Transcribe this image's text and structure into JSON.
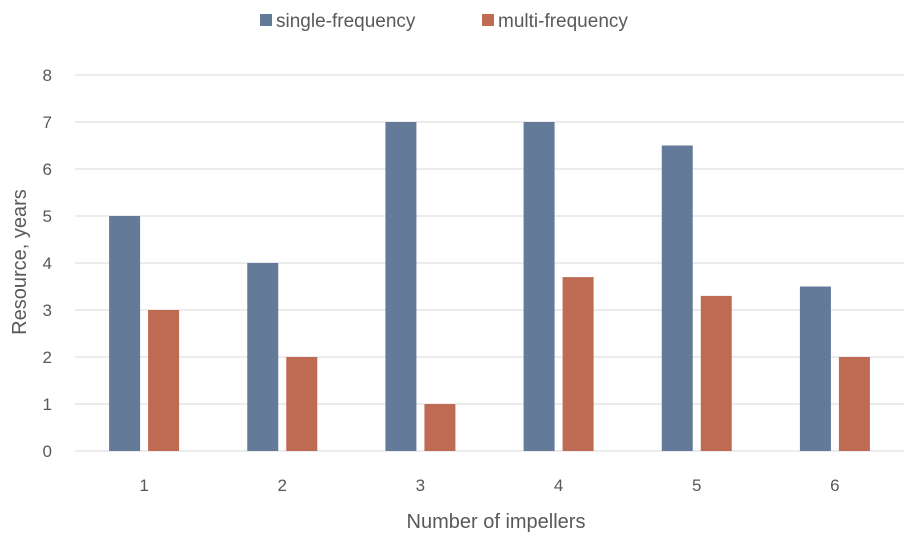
{
  "chart_data": {
    "type": "bar",
    "title": "",
    "xlabel": "Number  of impellers",
    "ylabel": "Resource, years",
    "categories": [
      "1",
      "2",
      "3",
      "4",
      "5",
      "6"
    ],
    "series": [
      {
        "name": "single-frequency",
        "color": "#647a99",
        "values": [
          5.0,
          4.0,
          7.0,
          7.0,
          6.5,
          3.5
        ]
      },
      {
        "name": "multi-frequency",
        "color": "#bf6a52",
        "values": [
          3.0,
          2.0,
          1.0,
          3.7,
          3.3,
          2.0
        ]
      }
    ],
    "ylim": [
      0,
      8
    ],
    "yticks": [
      "0",
      "1",
      "2",
      "3",
      "4",
      "5",
      "6",
      "7",
      "8"
    ],
    "grid": true,
    "legend": "top-center"
  }
}
